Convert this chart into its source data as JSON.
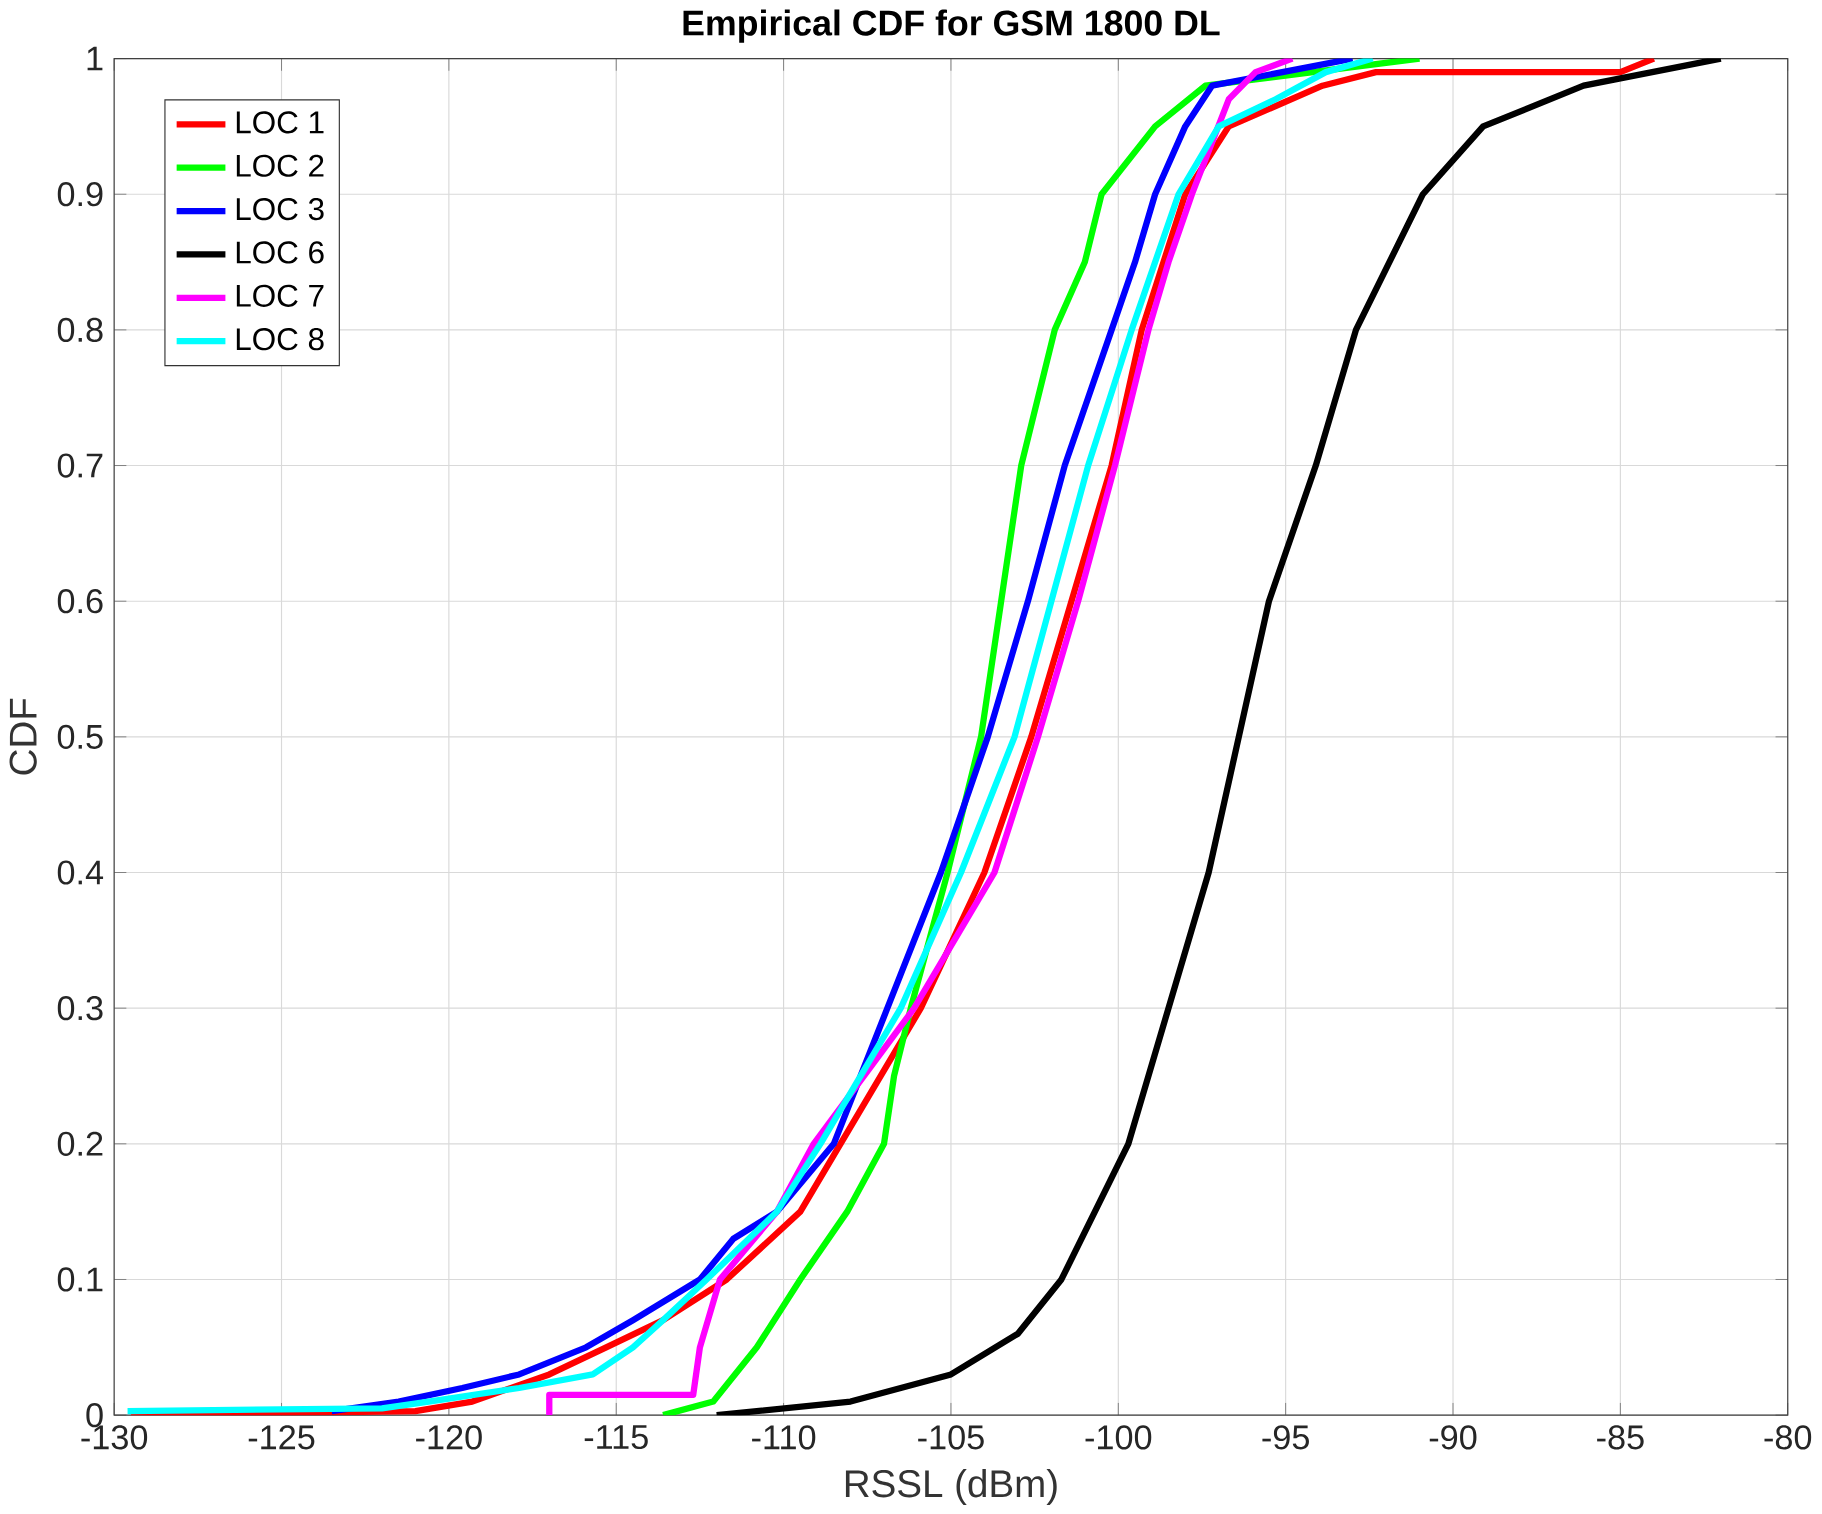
{
  "chart_data": {
    "type": "line",
    "title": "Empirical CDF for GSM 1800 DL",
    "xlabel": "RSSL (dBm)",
    "ylabel": "CDF",
    "xlim": [
      -130,
      -80
    ],
    "xticks": [
      -130,
      -125,
      -120,
      -115,
      -110,
      -105,
      -100,
      -95,
      -90,
      -85,
      -80
    ],
    "ylim": [
      0,
      1
    ],
    "yticks": [
      0,
      0.1,
      0.2,
      0.3,
      0.4,
      0.5,
      0.6,
      0.7,
      0.8,
      0.9,
      1
    ],
    "grid": true,
    "legend": "top left",
    "marker": "none",
    "line_style": "solid",
    "series": [
      {
        "name": "LOC 1",
        "color": "#ff0000",
        "x": [
          -129.5,
          -121,
          -119.3,
          -117,
          -115.3,
          -113.6,
          -111.7,
          -109.5,
          -108.3,
          -105.9,
          -104.0,
          -102.6,
          -101.4,
          -100.2,
          -99.3,
          -98.0,
          -96.7,
          -93.9,
          -92.3,
          -85,
          -84
        ],
        "values": [
          0,
          0.003,
          0.01,
          0.03,
          0.05,
          0.07,
          0.1,
          0.15,
          0.2,
          0.3,
          0.4,
          0.5,
          0.6,
          0.7,
          0.8,
          0.9,
          0.95,
          0.98,
          0.99,
          0.99,
          1
        ]
      },
      {
        "name": "LOC 2",
        "color": "#00ff00",
        "x": [
          -113.6,
          -112.1,
          -110.8,
          -109.5,
          -108.1,
          -107.0,
          -106.7,
          -106.2,
          -105.1,
          -104.1,
          -103.5,
          -102.9,
          -101.9,
          -101.0,
          -100.5,
          -98.9,
          -97.4,
          -91
        ],
        "values": [
          0,
          0.01,
          0.05,
          0.1,
          0.15,
          0.2,
          0.25,
          0.3,
          0.4,
          0.5,
          0.6,
          0.7,
          0.8,
          0.85,
          0.9,
          0.95,
          0.98,
          1
        ]
      },
      {
        "name": "LOC 3",
        "color": "#0000ff",
        "x": [
          -123.5,
          -121.5,
          -119.6,
          -117.9,
          -115.9,
          -114.5,
          -112.5,
          -111.5,
          -110.2,
          -108.5,
          -107.7,
          -106.9,
          -105.3,
          -103.9,
          -102.7,
          -101.6,
          -100.2,
          -99.5,
          -98.9,
          -98.0,
          -97.2,
          -93
        ],
        "values": [
          0.003,
          0.01,
          0.02,
          0.03,
          0.05,
          0.07,
          0.1,
          0.13,
          0.15,
          0.2,
          0.25,
          0.3,
          0.4,
          0.5,
          0.6,
          0.7,
          0.8,
          0.85,
          0.9,
          0.95,
          0.98,
          1
        ]
      },
      {
        "name": "LOC 6",
        "color": "#000000",
        "x": [
          -112,
          -108,
          -105,
          -103,
          -101.7,
          -99.7,
          -98.5,
          -97.3,
          -96.4,
          -95.5,
          -94.1,
          -92.9,
          -90.9,
          -89.1,
          -86.1,
          -82
        ],
        "values": [
          0,
          0.01,
          0.03,
          0.06,
          0.1,
          0.2,
          0.3,
          0.4,
          0.5,
          0.6,
          0.7,
          0.8,
          0.9,
          0.95,
          0.98,
          1
        ]
      },
      {
        "name": "LOC 7",
        "color": "#ff00ff",
        "x": [
          -117,
          -117,
          -112.7,
          -112.5,
          -111.9,
          -110.2,
          -109.1,
          -106.1,
          -103.7,
          -102.4,
          -101.2,
          -100.1,
          -99.1,
          -98.5,
          -97.8,
          -96.7,
          -95.9,
          -94.8
        ],
        "values": [
          0,
          0.015,
          0.015,
          0.05,
          0.1,
          0.15,
          0.2,
          0.3,
          0.4,
          0.5,
          0.6,
          0.7,
          0.8,
          0.85,
          0.9,
          0.97,
          0.99,
          1
        ]
      },
      {
        "name": "LOC 8",
        "color": "#00ffff",
        "x": [
          -129.6,
          -122,
          -120.6,
          -117.9,
          -115.7,
          -114.5,
          -113.6,
          -112.3,
          -110.2,
          -108.9,
          -106.5,
          -104.7,
          -103.1,
          -102.0,
          -100.9,
          -99.6,
          -98.2,
          -97.0,
          -95.3,
          -93.8,
          -92.4
        ],
        "values": [
          0.003,
          0.005,
          0.01,
          0.02,
          0.03,
          0.05,
          0.07,
          0.1,
          0.15,
          0.2,
          0.3,
          0.4,
          0.5,
          0.6,
          0.7,
          0.8,
          0.9,
          0.95,
          0.97,
          0.99,
          1
        ]
      }
    ]
  }
}
